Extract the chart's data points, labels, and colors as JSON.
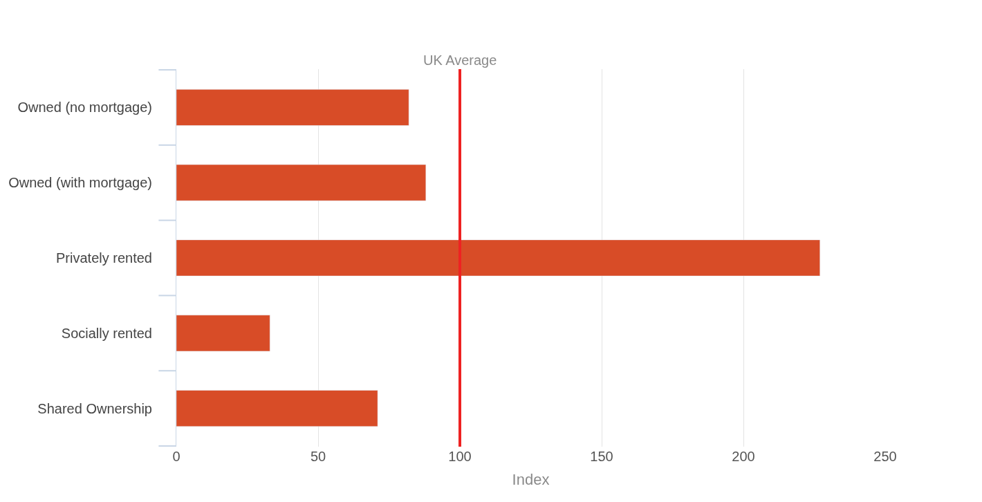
{
  "chart_data": {
    "type": "bar",
    "orientation": "horizontal",
    "xlabel": "Index",
    "categories": [
      "Owned (no mortgage)",
      "Owned (with mortgage)",
      "Privately rented",
      "Socially rented",
      "Shared Ownership"
    ],
    "values": [
      82,
      88,
      227,
      33,
      71
    ],
    "color": "#d84c27",
    "xlim": [
      0,
      250
    ],
    "xticks": [
      0,
      50,
      100,
      150,
      200,
      250
    ],
    "grid": "x",
    "ref_lines": [
      {
        "axis": "x",
        "value": 100,
        "label": "UK Average",
        "color": "#ee2222"
      }
    ]
  }
}
